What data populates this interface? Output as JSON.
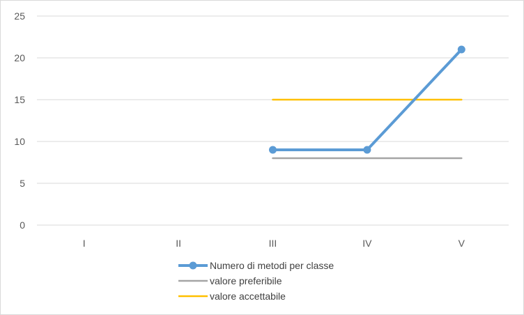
{
  "chart_data": {
    "type": "line",
    "categories": [
      "I",
      "II",
      "III",
      "IV",
      "V"
    ],
    "ylim": [
      0,
      25
    ],
    "yticks": [
      "0",
      "5",
      "10",
      "15",
      "20",
      "25"
    ],
    "grid": true,
    "legend_position": "bottom",
    "series": [
      {
        "name": "Numero di metodi per classe",
        "color": "#5b9bd5",
        "markers": true,
        "values": [
          null,
          null,
          9,
          9,
          21
        ]
      },
      {
        "name": "valore preferibile",
        "color": "#a5a5a5",
        "markers": false,
        "values": [
          null,
          null,
          8,
          8,
          8
        ]
      },
      {
        "name": "valore accettabile",
        "color": "#ffc000",
        "markers": false,
        "values": [
          null,
          null,
          15,
          15,
          15
        ]
      }
    ]
  }
}
